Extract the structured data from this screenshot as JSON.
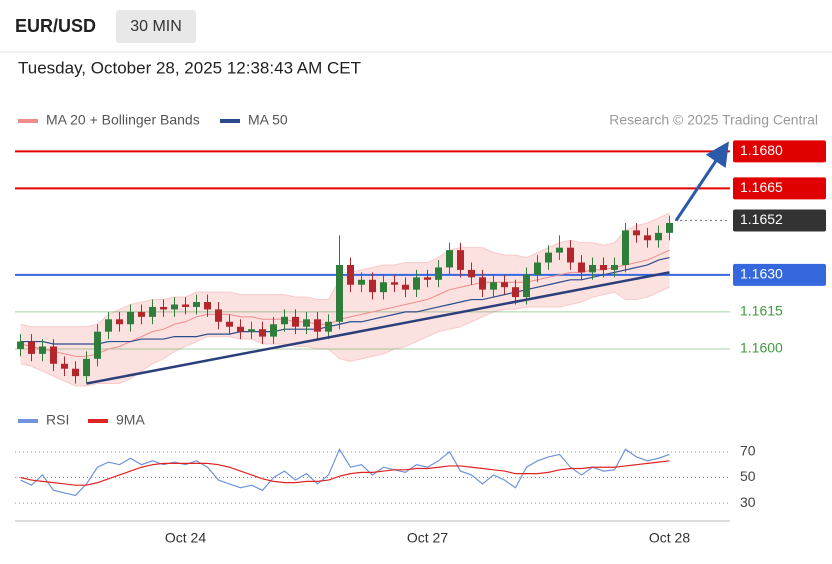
{
  "header": {
    "symbol": "EUR/USD",
    "timeframe": "30 MIN",
    "timestamp": "Tuesday, October 28, 2025 12:38:43 AM CET"
  },
  "chart_data": [
    {
      "type": "candlestick",
      "source": "Research © 2025 Trading Central",
      "up_color": "#2f7d3a",
      "down_color": "#b3262b",
      "categories": [
        null,
        null,
        null,
        null,
        null,
        null,
        null,
        null,
        null,
        null,
        null,
        null,
        null,
        null,
        null,
        "Oct 24",
        null,
        null,
        null,
        null,
        null,
        null,
        null,
        null,
        null,
        null,
        null,
        null,
        null,
        null,
        null,
        null,
        null,
        null,
        null,
        null,
        null,
        "Oct 27",
        null,
        null,
        null,
        null,
        null,
        null,
        null,
        null,
        null,
        null,
        null,
        null,
        null,
        null,
        null,
        null,
        null,
        null,
        null,
        null,
        null,
        "Oct 28"
      ],
      "open": [
        1.16,
        1.1603,
        1.1598,
        1.1601,
        1.1594,
        1.1592,
        1.1589,
        1.1596,
        1.1607,
        1.1612,
        1.161,
        1.1615,
        1.1613,
        1.1617,
        1.1616,
        1.1618,
        1.1617,
        1.1619,
        1.1616,
        1.1611,
        1.1609,
        1.1607,
        1.1608,
        1.1605,
        1.161,
        1.1613,
        1.1609,
        1.1612,
        1.1607,
        1.1611,
        1.1634,
        1.1626,
        1.1628,
        1.1623,
        1.1627,
        1.1626,
        1.1624,
        1.1629,
        1.1628,
        1.1633,
        1.164,
        1.1632,
        1.1629,
        1.1624,
        1.1627,
        1.1625,
        1.1621,
        1.163,
        1.1635,
        1.1639,
        1.1641,
        1.1635,
        1.1631,
        1.1634,
        1.1632,
        1.1634,
        1.1648,
        1.1646,
        1.1644,
        1.1647
      ],
      "high": [
        1.1606,
        1.1606,
        1.1604,
        1.1604,
        1.1597,
        1.1595,
        1.1599,
        1.161,
        1.1615,
        1.1615,
        1.1618,
        1.1618,
        1.162,
        1.162,
        1.1621,
        1.1621,
        1.1622,
        1.1622,
        1.1619,
        1.1614,
        1.1612,
        1.1611,
        1.1611,
        1.1613,
        1.1616,
        1.1616,
        1.1615,
        1.1615,
        1.1614,
        1.1646,
        1.1637,
        1.1631,
        1.1631,
        1.163,
        1.163,
        1.1629,
        1.1632,
        1.1632,
        1.1636,
        1.1643,
        1.1643,
        1.1635,
        1.1632,
        1.163,
        1.163,
        1.1628,
        1.1633,
        1.1638,
        1.1642,
        1.1646,
        1.1644,
        1.1638,
        1.1637,
        1.1637,
        1.1637,
        1.1651,
        1.1651,
        1.1649,
        1.165,
        1.1654
      ],
      "low": [
        1.1597,
        1.1595,
        1.1595,
        1.1591,
        1.1589,
        1.1586,
        1.1586,
        1.1593,
        1.1604,
        1.1607,
        1.1607,
        1.161,
        1.161,
        1.1613,
        1.1613,
        1.1614,
        1.1614,
        1.1613,
        1.1608,
        1.1606,
        1.1604,
        1.1604,
        1.1602,
        1.1602,
        1.1607,
        1.1606,
        1.1606,
        1.1604,
        1.1604,
        1.1608,
        1.1623,
        1.1623,
        1.162,
        1.162,
        1.1623,
        1.1621,
        1.1621,
        1.1625,
        1.1625,
        1.163,
        1.1629,
        1.1626,
        1.1621,
        1.1621,
        1.1622,
        1.1618,
        1.1618,
        1.1627,
        1.1632,
        1.1636,
        1.1632,
        1.1628,
        1.1628,
        1.1629,
        1.1629,
        1.1631,
        1.1643,
        1.1641,
        1.1641,
        1.1644
      ],
      "close": [
        1.1603,
        1.1598,
        1.1601,
        1.1594,
        1.1592,
        1.1589,
        1.1596,
        1.1607,
        1.1612,
        1.161,
        1.1615,
        1.1613,
        1.1617,
        1.1616,
        1.1618,
        1.1617,
        1.1619,
        1.1616,
        1.1611,
        1.1609,
        1.1607,
        1.1608,
        1.1605,
        1.161,
        1.1613,
        1.1609,
        1.1612,
        1.1607,
        1.1611,
        1.1634,
        1.1626,
        1.1628,
        1.1623,
        1.1627,
        1.1626,
        1.1624,
        1.1629,
        1.1628,
        1.1633,
        1.164,
        1.1632,
        1.1629,
        1.1624,
        1.1627,
        1.1625,
        1.1621,
        1.163,
        1.1635,
        1.1639,
        1.1641,
        1.1635,
        1.1631,
        1.1634,
        1.1632,
        1.1634,
        1.1648,
        1.1646,
        1.1644,
        1.1647,
        1.1651
      ],
      "series": [
        {
          "name": "MA 20 + Bollinger Bands",
          "color": "#f08c8c",
          "band_color": "#f9c9c9",
          "values": [
            1.1602,
            1.1601,
            1.16,
            1.1599,
            1.1598,
            1.1597,
            1.1597,
            1.1598,
            1.16,
            1.1601,
            1.1603,
            1.1605,
            1.1607,
            1.1608,
            1.161,
            1.1611,
            1.1613,
            1.1614,
            1.1614,
            1.1614,
            1.1613,
            1.1613,
            1.1612,
            1.1612,
            1.1612,
            1.1611,
            1.1611,
            1.161,
            1.161,
            1.1612,
            1.1613,
            1.1614,
            1.1615,
            1.1616,
            1.1617,
            1.1618,
            1.1619,
            1.162,
            1.1622,
            1.1624,
            1.1625,
            1.1626,
            1.1627,
            1.1627,
            1.1627,
            1.1627,
            1.1627,
            1.1628,
            1.1629,
            1.163,
            1.1631,
            1.1631,
            1.1632,
            1.1632,
            1.1633,
            1.1634,
            1.1635,
            1.1636,
            1.1638,
            1.164
          ],
          "upper": [
            1.161,
            1.1609,
            1.1609,
            1.1609,
            1.1609,
            1.1609,
            1.1609,
            1.161,
            1.1614,
            1.1616,
            1.1618,
            1.1619,
            1.162,
            1.162,
            1.1621,
            1.1621,
            1.1623,
            1.1623,
            1.1623,
            1.1623,
            1.1622,
            1.1622,
            1.1622,
            1.1622,
            1.1622,
            1.1621,
            1.1621,
            1.162,
            1.162,
            1.1628,
            1.1631,
            1.1632,
            1.1633,
            1.1634,
            1.1634,
            1.1635,
            1.1635,
            1.1635,
            1.1637,
            1.164,
            1.1641,
            1.1641,
            1.1641,
            1.1639,
            1.1638,
            1.1638,
            1.1637,
            1.1639,
            1.1641,
            1.1643,
            1.1644,
            1.1643,
            1.1643,
            1.1642,
            1.1643,
            1.1648,
            1.165,
            1.1651,
            1.1653,
            1.1655
          ],
          "lower": [
            1.1594,
            1.1593,
            1.1591,
            1.1589,
            1.1587,
            1.1585,
            1.1585,
            1.1586,
            1.1586,
            1.1586,
            1.1588,
            1.1591,
            1.1594,
            1.1596,
            1.1599,
            1.1601,
            1.1603,
            1.1605,
            1.1605,
            1.1605,
            1.1604,
            1.1604,
            1.1602,
            1.1602,
            1.1602,
            1.1601,
            1.1601,
            1.16,
            1.16,
            1.1596,
            1.1595,
            1.1596,
            1.1597,
            1.1598,
            1.16,
            1.1601,
            1.1603,
            1.1605,
            1.1607,
            1.1608,
            1.1609,
            1.1611,
            1.1613,
            1.1615,
            1.1616,
            1.1616,
            1.1617,
            1.1617,
            1.1617,
            1.1617,
            1.1618,
            1.1619,
            1.1621,
            1.1622,
            1.1623,
            1.162,
            1.162,
            1.1621,
            1.1623,
            1.1625
          ]
        },
        {
          "name": "MA 50",
          "color": "#2b4c8c",
          "values": [
            1.1603,
            1.1603,
            1.1603,
            1.1602,
            1.1602,
            1.1602,
            1.1602,
            1.1602,
            1.1603,
            1.1603,
            1.1603,
            1.1604,
            1.1604,
            1.1604,
            1.1605,
            1.1605,
            1.1605,
            1.1606,
            1.1606,
            1.1606,
            1.1607,
            1.1607,
            1.1607,
            1.1607,
            1.1608,
            1.1608,
            1.1608,
            1.1608,
            1.1609,
            1.161,
            1.1611,
            1.1611,
            1.1612,
            1.1613,
            1.1614,
            1.1615,
            1.1615,
            1.1616,
            1.1617,
            1.1618,
            1.1619,
            1.162,
            1.162,
            1.1621,
            1.1622,
            1.1623,
            1.1624,
            1.1625,
            1.1626,
            1.1627,
            1.1628,
            1.1628,
            1.1629,
            1.163,
            1.1631,
            1.1632,
            1.1633,
            1.1634,
            1.1636,
            1.1637
          ]
        }
      ],
      "levels": [
        {
          "value": 1.168,
          "label": "1.1680",
          "color": "#e00000",
          "style": "box",
          "dotted": false
        },
        {
          "value": 1.1665,
          "label": "1.1665",
          "color": "#e00000",
          "style": "box",
          "dotted": false
        },
        {
          "value": 1.1652,
          "label": "1.1652",
          "color": "#333333",
          "style": "box",
          "dotted": true
        },
        {
          "value": 1.163,
          "label": "1.1630",
          "color": "#3567dd",
          "style": "box",
          "dotted": false
        },
        {
          "value": 1.1615,
          "label": "1.1615",
          "color": "#3e9b3e",
          "style": "text",
          "dotted": false
        },
        {
          "value": 1.16,
          "label": "1.1600",
          "color": "#3e9b3e",
          "style": "text",
          "dotted": false
        }
      ],
      "trendline": {
        "x": [
          6,
          59
        ],
        "values": [
          1.1586,
          1.1631
        ],
        "color": "#2b3f7a"
      },
      "arrow": {
        "x": [
          59.6,
          63.8
        ],
        "values": [
          1.1652,
          1.168
        ],
        "color": "#2b5aa8"
      },
      "ylim": [
        1.1585,
        1.1685
      ]
    },
    {
      "type": "line",
      "series": [
        {
          "name": "RSI",
          "color": "#6f93dc",
          "values": [
            48,
            44,
            52,
            40,
            38,
            36,
            45,
            58,
            62,
            60,
            65,
            60,
            63,
            60,
            62,
            60,
            63,
            58,
            48,
            45,
            42,
            44,
            40,
            50,
            55,
            48,
            53,
            45,
            52,
            72,
            58,
            60,
            52,
            58,
            56,
            54,
            60,
            58,
            63,
            70,
            55,
            52,
            45,
            52,
            48,
            42,
            58,
            63,
            66,
            68,
            58,
            52,
            58,
            55,
            56,
            72,
            66,
            63,
            65,
            68
          ]
        },
        {
          "name": "9MA",
          "color": "#e02424",
          "values": [
            50,
            48,
            47,
            46,
            45,
            44,
            44,
            46,
            49,
            52,
            55,
            58,
            60,
            61,
            61,
            61,
            61,
            61,
            60,
            58,
            55,
            52,
            49,
            47,
            46,
            46,
            47,
            47,
            48,
            51,
            53,
            54,
            54,
            55,
            56,
            56,
            57,
            57,
            58,
            59,
            59,
            58,
            57,
            56,
            55,
            53,
            53,
            53,
            54,
            56,
            57,
            57,
            58,
            58,
            58,
            59,
            60,
            61,
            62,
            63
          ]
        }
      ],
      "ylim": [
        20,
        80
      ],
      "yticks": [
        30,
        50,
        70
      ],
      "grid": true
    }
  ]
}
